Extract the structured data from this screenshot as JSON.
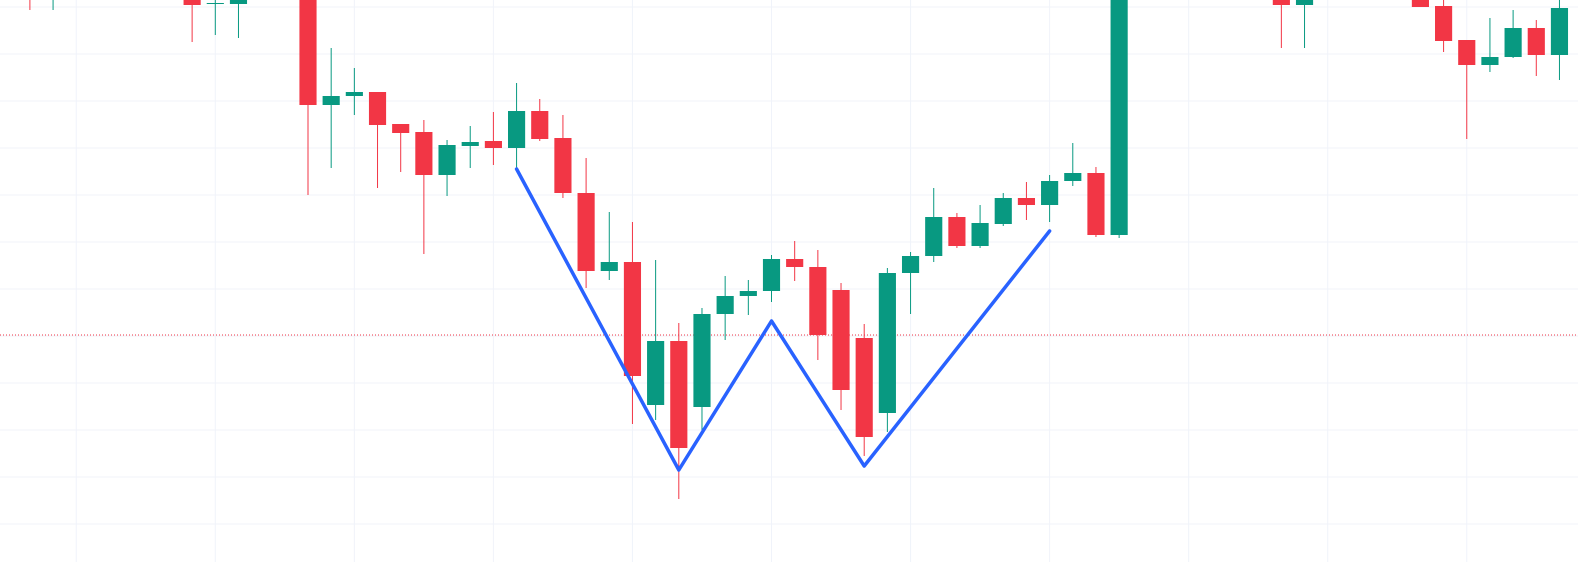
{
  "chart_data": {
    "type": "candlestick",
    "up_color": "#089981",
    "down_color": "#f23645",
    "grid": true,
    "grid_color": "#f0f3fa",
    "xlim": [
      -0.29,
      67.8
    ],
    "ylim": [
      0,
      562
    ],
    "xticks": [
      3,
      9,
      15,
      21,
      27,
      33,
      39,
      45,
      51,
      57,
      63
    ],
    "yticks": [
      38,
      85,
      132,
      179,
      226,
      273,
      320,
      367,
      414,
      461,
      508,
      555
    ],
    "x": [
      1,
      2,
      8,
      9,
      10,
      13,
      14,
      15,
      16,
      17,
      18,
      19,
      20,
      21,
      22,
      23,
      24,
      25,
      26,
      27,
      28,
      29,
      30,
      31,
      32,
      33,
      34,
      35,
      36,
      37,
      38,
      39,
      40,
      41,
      42,
      43,
      44,
      45,
      46,
      47,
      48,
      55,
      56,
      61,
      62,
      63,
      64,
      65,
      66,
      67
    ],
    "open": [
      572,
      565,
      572,
      558,
      558,
      572,
      457,
      466,
      470,
      438,
      430,
      387,
      416,
      421,
      414,
      451,
      424,
      369,
      291,
      300,
      157,
      221,
      155,
      248,
      266,
      271,
      303,
      295,
      272,
      224,
      149,
      289,
      306,
      345,
      316,
      338,
      364,
      357,
      381,
      389,
      327,
      572,
      557,
      572,
      556,
      522,
      497,
      505,
      534,
      507
    ],
    "high": [
      582,
      582,
      582,
      572,
      582,
      582,
      514,
      494,
      470,
      438,
      442,
      422,
      436,
      450,
      479,
      463,
      447,
      404,
      350,
      340,
      302,
      239,
      254,
      286,
      282,
      307,
      321,
      312,
      279,
      238,
      294,
      310,
      374,
      349,
      357,
      369,
      380,
      387,
      419,
      395,
      582,
      582,
      582,
      582,
      572,
      522,
      544,
      552,
      542,
      567
    ],
    "low": [
      552,
      552,
      520,
      527,
      524,
      367,
      394,
      447,
      374,
      390,
      308,
      366,
      394,
      397,
      394,
      421,
      364,
      274,
      282,
      138,
      142,
      63,
      132,
      222,
      247,
      260,
      281,
      202,
      152,
      106,
      130,
      248,
      300,
      314,
      314,
      336,
      342,
      340,
      376,
      325,
      324,
      514,
      514,
      555,
      510,
      423,
      490,
      504,
      486,
      482
    ],
    "close": [
      567,
      570,
      557,
      559,
      572,
      457,
      466,
      470,
      437,
      429,
      387,
      417,
      420,
      414,
      451,
      423,
      369,
      291,
      300,
      186,
      221,
      114,
      248,
      266,
      271,
      303,
      295,
      227,
      172,
      125,
      289,
      306,
      345,
      316,
      339,
      364,
      357,
      381,
      389,
      327,
      572,
      557,
      572,
      555,
      521,
      497,
      505,
      534,
      507,
      554
    ],
    "price_line": {
      "value": 227,
      "color": "#f23645"
    },
    "pattern": {
      "color": "#2962ff",
      "x": [
        22,
        29,
        33,
        37,
        45
      ],
      "y": [
        393,
        92,
        241,
        96,
        331
      ]
    }
  }
}
